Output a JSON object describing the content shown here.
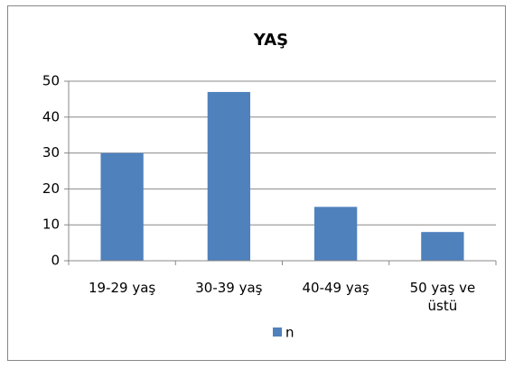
{
  "chart_data": {
    "type": "bar",
    "title": "YAŞ",
    "categories": [
      "19-29 yaş",
      "30-39 yaş",
      "40-49 yaş",
      "50 yaş ve üstü"
    ],
    "series": [
      {
        "name": "n",
        "color": "#4f81bd",
        "values": [
          30,
          47,
          15,
          8
        ]
      }
    ],
    "ylim": [
      0,
      50
    ],
    "yticks": [
      0,
      10,
      20,
      30,
      40,
      50
    ],
    "grid": true,
    "legend": "bottom"
  }
}
